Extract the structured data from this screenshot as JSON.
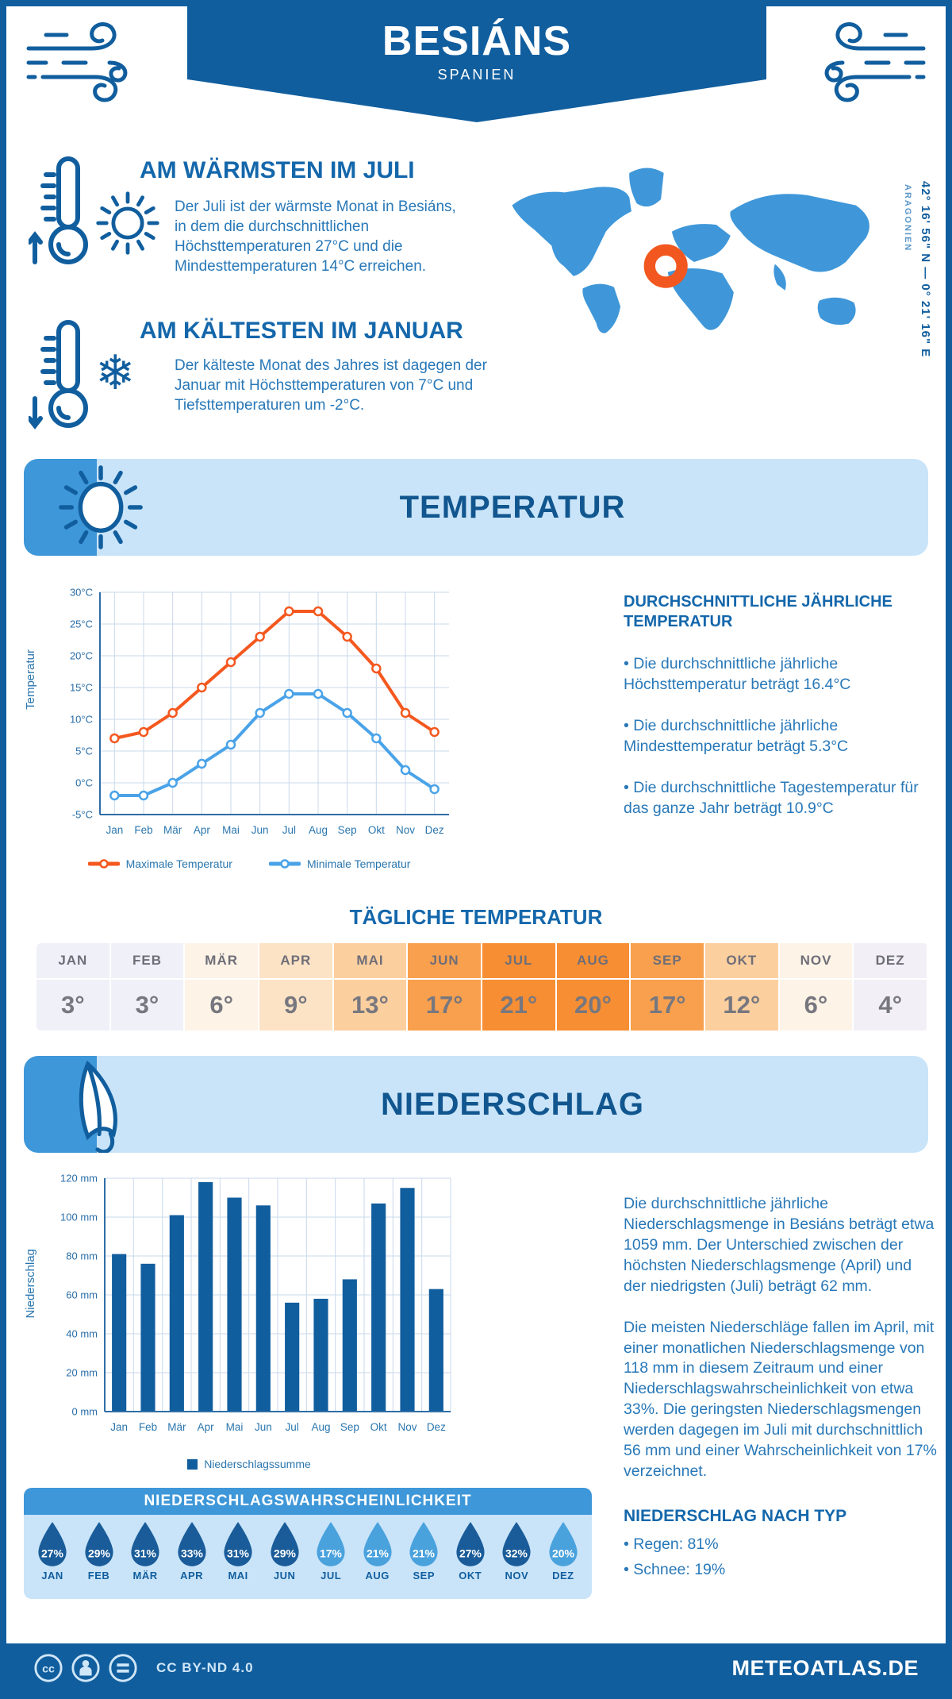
{
  "header": {
    "title": "BESIÁNS",
    "subtitle": "SPANIEN"
  },
  "location": {
    "coordinates": "42° 16' 56\" N — 0° 21' 16\" E",
    "region": "ARAGONIEN"
  },
  "warmest": {
    "heading": "AM WÄRMSTEN IM JULI",
    "text": "Der Juli ist der wärmste Monat in Besiáns, in dem die durchschnittlichen Höchsttemperaturen 27°C und die Mindesttemperaturen 14°C erreichen."
  },
  "coldest": {
    "heading": "AM KÄLTESTEN IM JANUAR",
    "text": "Der kälteste Monat des Jahres ist dagegen der Januar mit Höchsttemperaturen von 7°C und Tiefsttemperaturen um -2°C."
  },
  "temperature_section": {
    "banner": "TEMPERATUR",
    "annual": {
      "heading": "DURCHSCHNITTLICHE JÄHRLICHE TEMPERATUR",
      "bullets": [
        "• Die durchschnittliche jährliche Höchsttemperatur beträgt 16.4°C",
        "• Die durchschnittliche jährliche Mindesttemperatur beträgt 5.3°C",
        "• Die durchschnittliche Tagestemperatur für das ganze Jahr beträgt 10.9°C"
      ]
    },
    "daily": {
      "heading": "TÄGLICHE TEMPERATUR",
      "months": [
        "JAN",
        "FEB",
        "MÄR",
        "APR",
        "MAI",
        "JUN",
        "JUL",
        "AUG",
        "SEP",
        "OKT",
        "NOV",
        "DEZ"
      ],
      "values": [
        "3°",
        "3°",
        "6°",
        "9°",
        "13°",
        "17°",
        "21°",
        "20°",
        "17°",
        "12°",
        "6°",
        "4°"
      ],
      "cell_colors": [
        "#f0f0f8",
        "#f0f0f8",
        "#fdf3e7",
        "#fde3c6",
        "#fccf9f",
        "#f9a04e",
        "#f78e33",
        "#f78e33",
        "#f9a04e",
        "#fccf9f",
        "#fdf3e7",
        "#f2f0f6"
      ]
    }
  },
  "precipitation_section": {
    "banner": "NIEDERSCHLAG",
    "legend": "Niederschlagssumme",
    "text1": "Die durchschnittliche jährliche Niederschlagsmenge in Besiáns beträgt etwa 1059 mm. Der Unterschied zwischen der höchsten Niederschlagsmenge (April) und der niedrigsten (Juli) beträgt 62 mm.",
    "text2": "Die meisten Niederschläge fallen im April, mit einer monatlichen Niederschlagsmenge von 118 mm in diesem Zeitraum und einer Niederschlagswahrscheinlichkeit von etwa 33%. Die geringsten Niederschlagsmengen werden dagegen im Juli mit durchschnittlich 56 mm und einer Wahrscheinlichkeit von 17% verzeichnet.",
    "type_heading": "NIEDERSCHLAG NACH TYP",
    "type_bullets": [
      "• Regen: 81%",
      "• Schnee: 19%"
    ],
    "probability": {
      "heading": "NIEDERSCHLAGSWAHRSCHEINLICHKEIT",
      "months": [
        "JAN",
        "FEB",
        "MÄR",
        "APR",
        "MAI",
        "JUN",
        "JUL",
        "AUG",
        "SEP",
        "OKT",
        "NOV",
        "DEZ"
      ],
      "values": [
        "27%",
        "29%",
        "31%",
        "33%",
        "31%",
        "29%",
        "17%",
        "21%",
        "21%",
        "27%",
        "32%",
        "20%"
      ],
      "dark": [
        1,
        1,
        1,
        1,
        1,
        1,
        0,
        0,
        0,
        1,
        1,
        0
      ],
      "colors": {
        "dark": "#1a5c99",
        "light": "#4aa2dd"
      }
    }
  },
  "footer": {
    "license": "CC BY-ND 4.0",
    "site": "METEOATLAS.DE"
  },
  "chart_data": [
    {
      "type": "line",
      "title": "Monatliche Höchst- und Tiefsttemperaturen",
      "categories": [
        "Jan",
        "Feb",
        "Mär",
        "Apr",
        "Mai",
        "Jun",
        "Jul",
        "Aug",
        "Sep",
        "Okt",
        "Nov",
        "Dez"
      ],
      "series": [
        {
          "name": "Maximale Temperatur",
          "color": "#f4581f",
          "values": [
            7,
            8,
            11,
            15,
            19,
            23,
            27,
            27,
            23,
            18,
            11,
            8
          ]
        },
        {
          "name": "Minimale Temperatur",
          "color": "#4aa3e8",
          "values": [
            -2,
            -2,
            0,
            3,
            6,
            11,
            14,
            14,
            11,
            7,
            2,
            -1
          ]
        }
      ],
      "xlabel": "",
      "ylabel": "Temperatur",
      "ylim": [
        -5,
        30
      ],
      "ytick_step": 5,
      "yunit": "°C",
      "grid": true,
      "legend_position": "bottom"
    },
    {
      "type": "bar",
      "title": "Monatliche Niederschlagssumme",
      "categories": [
        "Jan",
        "Feb",
        "Mär",
        "Apr",
        "Mai",
        "Jun",
        "Jul",
        "Aug",
        "Sep",
        "Okt",
        "Nov",
        "Dez"
      ],
      "values": [
        81,
        76,
        101,
        118,
        110,
        106,
        56,
        58,
        68,
        107,
        115,
        63
      ],
      "xlabel": "",
      "ylabel": "Niederschlag",
      "ylim": [
        0,
        120
      ],
      "ytick_step": 20,
      "yunit": " mm",
      "bar_color": "#115e9e",
      "grid": true,
      "legend": "Niederschlagssumme",
      "legend_position": "bottom",
      "annual_total_mm": 1059
    }
  ]
}
